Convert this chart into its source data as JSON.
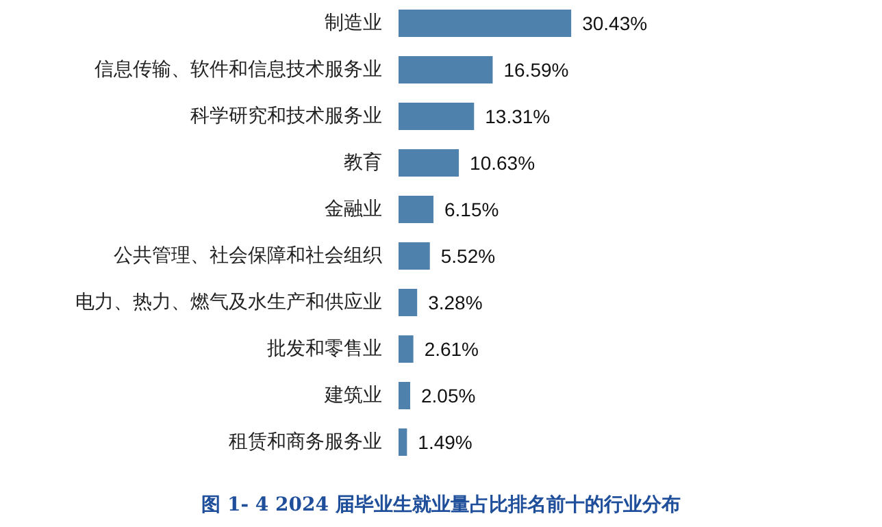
{
  "chart_data": {
    "type": "bar",
    "orientation": "horizontal",
    "title": "图 1- 4 2024 届毕业生就业量占比排名前十的行业分布",
    "categories": [
      "制造业",
      "信息传输、软件和信息技术服务业",
      "科学研究和技术服务业",
      "教育",
      "金融业",
      "公共管理、社会保障和社会组织",
      "电力、热力、燃气及水生产和供应业",
      "批发和零售业",
      "建筑业",
      "租赁和商务服务业"
    ],
    "values": [
      30.43,
      16.59,
      13.31,
      10.63,
      6.15,
      5.52,
      3.28,
      2.61,
      2.05,
      1.49
    ],
    "value_labels": [
      "30.43%",
      "16.59%",
      "13.31%",
      "10.63%",
      "6.15%",
      "5.52%",
      "3.28%",
      "2.61%",
      "2.05%",
      "1.49%"
    ],
    "color": "#4f81ad",
    "tick_labels": "y"
  }
}
